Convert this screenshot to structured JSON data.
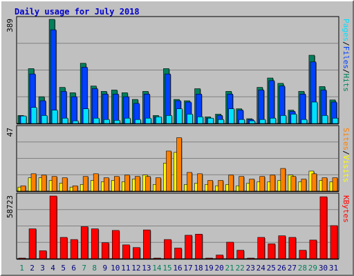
{
  "chart_data": {
    "type": "bar",
    "title": "Daily usage for July 2018",
    "categories": [
      "1",
      "2",
      "3",
      "4",
      "5",
      "6",
      "7",
      "8",
      "9",
      "10",
      "11",
      "12",
      "13",
      "14",
      "15",
      "16",
      "17",
      "18",
      "19",
      "20",
      "21",
      "22",
      "23",
      "24",
      "25",
      "26",
      "27",
      "28",
      "29",
      "30",
      "31"
    ],
    "weekend_days": [
      "1",
      "7",
      "8",
      "14",
      "15",
      "21",
      "22",
      "28",
      "29"
    ],
    "colors": {
      "hits": "#00805c",
      "files": "#0040ff",
      "pages": "#00e0ff",
      "visits": "#ffff00",
      "sites": "#ff8000",
      "kbytes": "#ff0000",
      "weekday_label": "#000080",
      "weekend_label": "#00805c"
    },
    "panels": [
      {
        "id": "top",
        "ymax_label": "389",
        "ymax": 389,
        "right_label": [
          {
            "text": "Pages",
            "color": "#00e0ff"
          },
          {
            "text": "/",
            "color": "#000000"
          },
          {
            "text": "Files",
            "color": "#0040ff"
          },
          {
            "text": "/",
            "color": "#000000"
          },
          {
            "text": "Hits",
            "color": "#00805c"
          }
        ],
        "series": [
          {
            "name": "Hits",
            "values": [
              30,
              205,
              100,
              389,
              135,
              115,
              225,
              140,
              120,
              125,
              115,
              90,
              120,
              30,
              205,
              90,
              85,
              130,
              25,
              35,
              120,
              55,
              18,
              135,
              170,
              150,
              50,
              120,
              255,
              138,
              88
            ]
          },
          {
            "name": "Files",
            "values": [
              28,
              185,
              85,
              350,
              120,
              100,
              210,
              130,
              110,
              110,
              100,
              75,
              110,
              25,
              185,
              85,
              80,
              110,
              20,
              30,
              110,
              50,
              15,
              125,
              160,
              140,
              45,
              110,
              230,
              125,
              80
            ]
          },
          {
            "name": "Pages",
            "values": [
              28,
              60,
              30,
              50,
              20,
              10,
              55,
              20,
              15,
              12,
              20,
              15,
              20,
              25,
              30,
              55,
              35,
              25,
              20,
              15,
              55,
              15,
              10,
              15,
              20,
              30,
              35,
              15,
              80,
              30,
              20
            ]
          }
        ]
      },
      {
        "id": "middle",
        "ymax_label": "47",
        "ymax": 47,
        "right_label": [
          {
            "text": "Sites",
            "color": "#ff8000"
          },
          {
            "text": "/",
            "color": "#000000"
          },
          {
            "text": "Visits",
            "color": "#ffff00"
          }
        ],
        "series": [
          {
            "name": "Visits",
            "values": [
              3,
              10,
              10,
              8,
              6,
              3,
              5,
              8,
              7,
              8,
              7,
              9,
              12,
              5,
              21,
              29,
              5,
              6,
              5,
              4,
              5,
              4,
              6,
              7,
              7,
              8,
              12,
              7,
              15,
              8,
              7
            ]
          },
          {
            "name": "Sites",
            "values": [
              4,
              13,
              12,
              11,
              10,
              4,
              11,
              13,
              10,
              11,
              12,
              11,
              11,
              10,
              30,
              40,
              14,
              13,
              8,
              8,
              12,
              11,
              9,
              11,
              12,
              17,
              11,
              9,
              13,
              10,
              10
            ]
          }
        ]
      },
      {
        "id": "bottom",
        "ymax_label": "58723",
        "ymax": 58723,
        "right_label": [
          {
            "text": "KBytes",
            "color": "#ff0000"
          }
        ],
        "series": [
          {
            "name": "KBytes",
            "values": [
              500,
              28000,
              7500,
              58723,
              20000,
              18000,
              30000,
              28000,
              15000,
              26500,
              13000,
              10500,
              27000,
              500,
              18000,
              10000,
              22000,
              23000,
              500,
              3500,
              15500,
              8000,
              500,
              20000,
              14000,
              21500,
              20000,
              8000,
              17500,
              58000,
              31000
            ]
          }
        ]
      }
    ]
  }
}
